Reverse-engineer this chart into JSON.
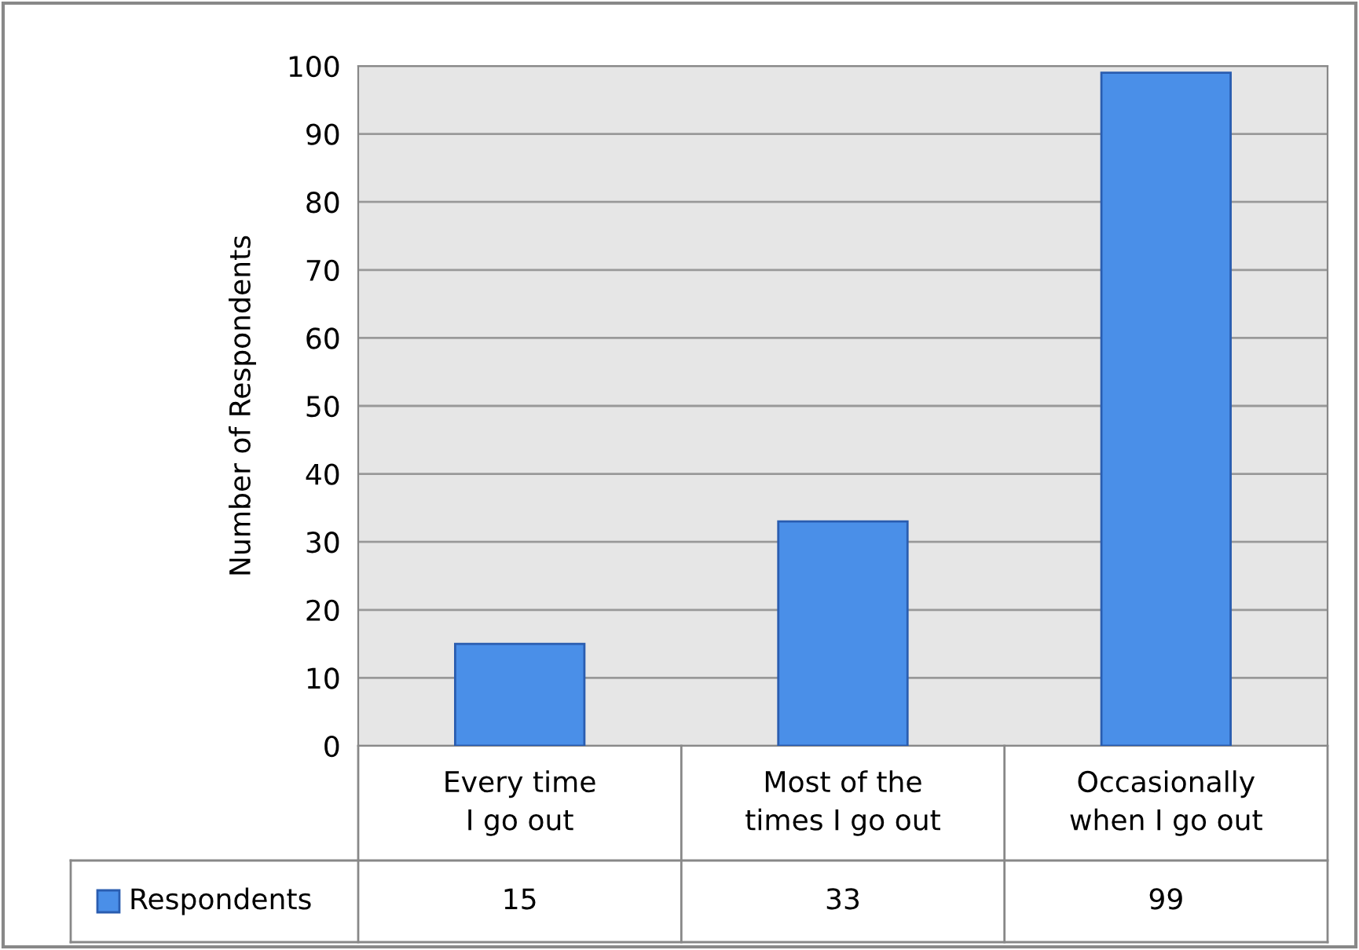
{
  "chart_data": {
    "type": "bar",
    "ylabel": "Number of Respondents",
    "categories": [
      "Every time I go out",
      "Most of the times I go out",
      "Occasionally when I go out"
    ],
    "series": [
      {
        "name": "Respondents",
        "color": "#4a8fe8",
        "values": [
          15,
          33,
          99
        ]
      }
    ],
    "ylim": [
      0,
      100
    ],
    "yticks": [
      0,
      10,
      20,
      30,
      40,
      50,
      60,
      70,
      80,
      90,
      100
    ],
    "grid": "y",
    "data_labels": true,
    "legend": "bottom"
  }
}
